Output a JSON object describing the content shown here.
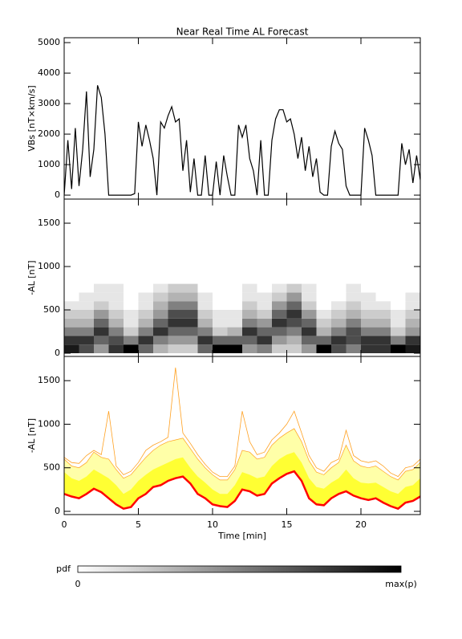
{
  "chart_data": [
    {
      "type": "line",
      "title": "Near Real Time AL Forecast",
      "ylabel": "VBs [nT×km/s]",
      "xlim": [
        0,
        24
      ],
      "xticks": [
        0,
        5,
        10,
        15,
        20
      ],
      "show_xtick_labels": false,
      "ylim": [
        -130,
        5160
      ],
      "yticks": [
        0,
        1000,
        2000,
        3000,
        4000,
        5000
      ],
      "color": "#000000",
      "x": [
        0,
        0.25,
        0.5,
        0.75,
        1,
        1.25,
        1.5,
        1.75,
        2,
        2.25,
        2.5,
        2.75,
        3,
        3.25,
        3.5,
        3.75,
        4,
        4.25,
        4.5,
        4.75,
        5,
        5.25,
        5.5,
        5.75,
        6,
        6.25,
        6.5,
        6.75,
        7,
        7.25,
        7.5,
        7.75,
        8,
        8.25,
        8.5,
        8.75,
        9,
        9.25,
        9.5,
        9.75,
        10,
        10.25,
        10.5,
        10.75,
        11,
        11.25,
        11.5,
        11.75,
        12,
        12.25,
        12.5,
        12.75,
        13,
        13.25,
        13.5,
        13.75,
        14,
        14.25,
        14.5,
        14.75,
        15,
        15.25,
        15.5,
        15.75,
        16,
        16.25,
        16.5,
        16.75,
        17,
        17.25,
        17.5,
        17.75,
        18,
        18.25,
        18.5,
        18.75,
        19,
        19.25,
        19.5,
        19.75,
        20,
        20.25,
        20.5,
        20.75,
        21,
        21.25,
        21.5,
        21.75,
        22,
        22.25,
        22.5,
        22.75,
        23,
        23.25,
        23.5,
        23.75,
        24
      ],
      "values": [
        0,
        1800,
        200,
        2200,
        300,
        1500,
        3400,
        600,
        1500,
        3600,
        3200,
        2000,
        0,
        0,
        0,
        0,
        0,
        0,
        0,
        50,
        2400,
        1600,
        2300,
        1800,
        1200,
        0,
        2400,
        2200,
        2600,
        2900,
        2400,
        2500,
        800,
        1800,
        100,
        1200,
        0,
        0,
        1300,
        0,
        0,
        1100,
        0,
        1300,
        600,
        0,
        0,
        2300,
        1900,
        2300,
        1200,
        800,
        0,
        1800,
        0,
        0,
        1800,
        2500,
        2800,
        2800,
        2400,
        2500,
        2000,
        1200,
        1900,
        800,
        1600,
        600,
        1200,
        100,
        0,
        0,
        1600,
        2100,
        1700,
        1500,
        300,
        0,
        0,
        0,
        0,
        2200,
        1800,
        1300,
        0,
        0,
        0,
        0,
        0,
        0,
        0,
        1700,
        1000,
        1500,
        400,
        1300,
        500
      ]
    },
    {
      "type": "heatmap",
      "ylabel": "-AL [nT]",
      "xlim": [
        0,
        24
      ],
      "xticks": [
        0,
        5,
        10,
        15,
        20
      ],
      "show_xtick_labels": false,
      "ylim": [
        -37,
        1778
      ],
      "yticks": [
        0,
        500,
        1000,
        1500
      ],
      "x_edges": [
        0,
        1,
        2,
        3,
        4,
        5,
        6,
        7,
        8,
        9,
        10,
        11,
        12,
        13,
        14,
        15,
        16,
        17,
        18,
        19,
        20,
        21,
        22,
        23,
        24
      ],
      "y_edges": [
        0,
        100,
        200,
        300,
        400,
        500,
        600,
        700,
        800
      ],
      "z": [
        [
          0.9,
          0.7,
          0.4,
          0.8,
          1.0,
          0.6,
          0.3,
          0.2,
          0.2,
          0.6,
          1.0,
          1.0,
          0.4,
          0.5,
          0.2,
          0.2,
          0.4,
          1.0,
          0.7,
          0.5,
          0.8,
          0.8,
          1.0,
          0.9
        ],
        [
          0.8,
          0.8,
          0.6,
          0.7,
          0.5,
          0.8,
          0.5,
          0.4,
          0.4,
          0.8,
          0.6,
          0.6,
          0.6,
          0.8,
          0.4,
          0.3,
          0.6,
          0.6,
          0.8,
          0.7,
          0.8,
          0.8,
          0.5,
          0.8
        ],
        [
          0.5,
          0.5,
          0.8,
          0.5,
          0.2,
          0.5,
          0.8,
          0.6,
          0.6,
          0.5,
          0.2,
          0.3,
          0.8,
          0.6,
          0.6,
          0.5,
          0.8,
          0.3,
          0.5,
          0.7,
          0.5,
          0.5,
          0.2,
          0.4
        ],
        [
          0.3,
          0.3,
          0.6,
          0.3,
          0.1,
          0.3,
          0.6,
          0.8,
          0.8,
          0.3,
          0.1,
          0.1,
          0.5,
          0.4,
          0.8,
          0.7,
          0.6,
          0.2,
          0.3,
          0.5,
          0.3,
          0.3,
          0.1,
          0.3
        ],
        [
          0.2,
          0.2,
          0.4,
          0.2,
          0.1,
          0.2,
          0.4,
          0.7,
          0.7,
          0.2,
          0.1,
          0.1,
          0.3,
          0.2,
          0.6,
          0.8,
          0.4,
          0.1,
          0.2,
          0.3,
          0.2,
          0.2,
          0.1,
          0.2
        ],
        [
          0.1,
          0.1,
          0.2,
          0.1,
          0,
          0.1,
          0.3,
          0.5,
          0.5,
          0.1,
          0,
          0,
          0.2,
          0.1,
          0.4,
          0.6,
          0.2,
          0,
          0.1,
          0.2,
          0.1,
          0.1,
          0,
          0.1
        ],
        [
          0,
          0.1,
          0.1,
          0.1,
          0,
          0.1,
          0.2,
          0.3,
          0.3,
          0.1,
          0,
          0,
          0.1,
          0.1,
          0.2,
          0.4,
          0.1,
          0,
          0,
          0.1,
          0.1,
          0,
          0,
          0.1
        ],
        [
          0,
          0,
          0.1,
          0.1,
          0,
          0,
          0.1,
          0.2,
          0.2,
          0,
          0,
          0,
          0.1,
          0,
          0.1,
          0.2,
          0.1,
          0,
          0,
          0.1,
          0,
          0,
          0,
          0
        ]
      ]
    },
    {
      "type": "band",
      "ylabel": "-AL [nT]",
      "xlabel": "Time [min]",
      "xlim": [
        0,
        24
      ],
      "xticks": [
        0,
        5,
        10,
        15,
        20
      ],
      "show_xtick_labels": true,
      "ylim": [
        -37,
        1778
      ],
      "yticks": [
        0,
        500,
        1000,
        1500
      ],
      "x": [
        0,
        0.5,
        1,
        1.5,
        2,
        2.5,
        3,
        3.5,
        4,
        4.5,
        5,
        5.5,
        6,
        6.5,
        7,
        7.5,
        8,
        8.5,
        9,
        9.5,
        10,
        10.5,
        11,
        11.5,
        12,
        12.5,
        13,
        13.5,
        14,
        14.5,
        15,
        15.5,
        16,
        16.5,
        17,
        17.5,
        18,
        18.5,
        19,
        19.5,
        20,
        20.5,
        21,
        21.5,
        22,
        22.5,
        23,
        23.5,
        24
      ],
      "series": [
        {
          "color": "#ff0000",
          "width": 2.5,
          "values": [
            200,
            170,
            150,
            200,
            260,
            220,
            150,
            80,
            30,
            50,
            150,
            200,
            280,
            300,
            350,
            380,
            400,
            320,
            200,
            150,
            80,
            60,
            50,
            120,
            250,
            230,
            180,
            200,
            320,
            380,
            430,
            460,
            350,
            150,
            80,
            70,
            150,
            200,
            230,
            180,
            150,
            130,
            150,
            100,
            60,
            30,
            100,
            120,
            170
          ]
        },
        {
          "color": "#ffff33",
          "fill": "#ffff33",
          "width": 0,
          "values": [
            450,
            380,
            350,
            400,
            480,
            430,
            380,
            300,
            200,
            250,
            350,
            420,
            480,
            520,
            560,
            600,
            620,
            500,
            400,
            330,
            250,
            200,
            200,
            300,
            450,
            420,
            380,
            400,
            520,
            600,
            650,
            680,
            560,
            380,
            280,
            260,
            330,
            380,
            480,
            380,
            330,
            320,
            330,
            280,
            230,
            200,
            280,
            300,
            380
          ]
        },
        {
          "color": "#ffa020",
          "fill": "#ffffa8",
          "width": 0.7,
          "values": [
            600,
            520,
            500,
            560,
            680,
            620,
            600,
            480,
            380,
            420,
            520,
            620,
            700,
            760,
            800,
            820,
            840,
            720,
            600,
            500,
            420,
            360,
            360,
            480,
            700,
            680,
            600,
            620,
            760,
            840,
            900,
            950,
            800,
            580,
            450,
            420,
            500,
            560,
            760,
            580,
            520,
            500,
            520,
            460,
            400,
            360,
            460,
            480,
            560
          ]
        },
        {
          "color": "#ffa020",
          "width": 0.8,
          "values": [
            620,
            560,
            550,
            640,
            700,
            650,
            1150,
            520,
            420,
            460,
            560,
            700,
            760,
            800,
            850,
            1650,
            900,
            780,
            650,
            540,
            450,
            400,
            400,
            520,
            1150,
            800,
            650,
            680,
            820,
            900,
            1000,
            1150,
            900,
            640,
            500,
            460,
            560,
            600,
            930,
            640,
            580,
            560,
            580,
            520,
            440,
            400,
            500,
            520,
            600
          ]
        }
      ]
    }
  ],
  "colorbar": {
    "label": "pdf",
    "min_label": "0",
    "max_label": "max(p)"
  }
}
